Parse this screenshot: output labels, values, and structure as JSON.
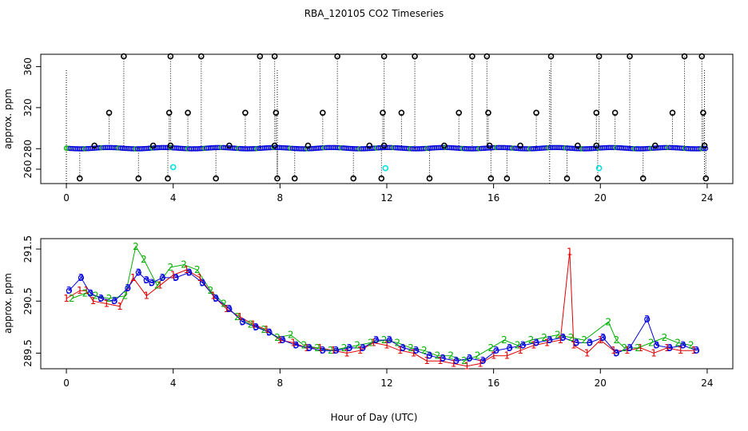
{
  "title": "RBA_120105  CO2 Timeseries",
  "xlabel": "Hour of Day (UTC)",
  "colors": {
    "series1": "#e00000",
    "series2": "#00b000",
    "series3": "#0000dd",
    "open_circle": "#000000",
    "cyan_marker": "#00e0e0"
  },
  "chart_data": [
    {
      "type": "scatter",
      "ylabel": "approx. ppm",
      "xlim": [
        0,
        24
      ],
      "ylim": [
        246,
        372
      ],
      "x_ticks": [
        "0",
        "4",
        "8",
        "12",
        "16",
        "20",
        "24"
      ],
      "y_ticks": [
        "260",
        "280",
        "320",
        "360"
      ],
      "baseline_value": 280.5,
      "markers": {
        "color": "series3",
        "glyph": "o"
      },
      "open_circles_high": [
        [
          2.15,
          370
        ],
        [
          3.9,
          370
        ],
        [
          5.05,
          370
        ],
        [
          7.25,
          370
        ],
        [
          7.8,
          370
        ],
        [
          10.15,
          370
        ],
        [
          11.9,
          370
        ],
        [
          13.05,
          370
        ],
        [
          15.2,
          370
        ],
        [
          15.75,
          370
        ],
        [
          18.15,
          370
        ],
        [
          19.95,
          370
        ],
        [
          21.1,
          370
        ],
        [
          23.15,
          370
        ],
        [
          23.8,
          370
        ]
      ],
      "open_circles_mid": [
        [
          1.6,
          315
        ],
        [
          3.85,
          315
        ],
        [
          4.55,
          315
        ],
        [
          6.7,
          315
        ],
        [
          7.85,
          315
        ],
        [
          9.6,
          315
        ],
        [
          11.85,
          315
        ],
        [
          12.55,
          315
        ],
        [
          14.7,
          315
        ],
        [
          15.8,
          315
        ],
        [
          17.6,
          315
        ],
        [
          19.85,
          315
        ],
        [
          20.55,
          315
        ],
        [
          22.7,
          315
        ],
        [
          23.85,
          315
        ]
      ],
      "open_circles_near": [
        [
          1.05,
          283
        ],
        [
          3.25,
          283
        ],
        [
          3.9,
          283
        ],
        [
          6.1,
          283
        ],
        [
          7.8,
          283
        ],
        [
          9.05,
          283
        ],
        [
          11.35,
          283
        ],
        [
          11.9,
          283
        ],
        [
          14.15,
          283
        ],
        [
          15.85,
          283
        ],
        [
          17.0,
          283
        ],
        [
          19.15,
          283
        ],
        [
          19.85,
          283
        ],
        [
          22.05,
          283
        ],
        [
          23.9,
          283
        ]
      ],
      "open_circles_low": [
        [
          0.5,
          251
        ],
        [
          2.7,
          251
        ],
        [
          3.8,
          251
        ],
        [
          5.6,
          251
        ],
        [
          7.9,
          251
        ],
        [
          8.55,
          251
        ],
        [
          10.75,
          251
        ],
        [
          11.8,
          251
        ],
        [
          13.6,
          251
        ],
        [
          15.9,
          251
        ],
        [
          16.5,
          251
        ],
        [
          18.75,
          251
        ],
        [
          19.9,
          251
        ],
        [
          21.6,
          251
        ],
        [
          23.95,
          251
        ]
      ],
      "cyan_points": [
        [
          4.0,
          262
        ],
        [
          11.95,
          261
        ],
        [
          19.95,
          261
        ]
      ]
    },
    {
      "type": "scatter",
      "ylabel": "approx. ppm",
      "xlim": [
        0,
        24
      ],
      "ylim": [
        289.2,
        291.7
      ],
      "x_ticks": [
        "0",
        "4",
        "8",
        "12",
        "16",
        "20",
        "24"
      ],
      "y_ticks": [
        "289.5",
        "290.5",
        "291.5"
      ],
      "markers": {
        "series1": "1",
        "series2": "2",
        "series3": "3",
        "circle": "o"
      },
      "series": [
        {
          "label": "1",
          "color": "series1",
          "points": [
            [
              0,
              290.55
            ],
            [
              0.5,
              290.7
            ],
            [
              0.75,
              290.7
            ],
            [
              1.0,
              290.5
            ],
            [
              1.5,
              290.45
            ],
            [
              2.0,
              290.4
            ],
            [
              2.5,
              290.95
            ],
            [
              3.0,
              290.6
            ],
            [
              3.5,
              290.8
            ],
            [
              4.0,
              291.0
            ],
            [
              4.5,
              291.1
            ],
            [
              5.0,
              290.95
            ],
            [
              5.5,
              290.6
            ],
            [
              6.0,
              290.35
            ],
            [
              6.5,
              290.2
            ],
            [
              7.0,
              290.05
            ],
            [
              7.5,
              289.95
            ],
            [
              8.0,
              289.75
            ],
            [
              8.5,
              289.7
            ],
            [
              9.0,
              289.6
            ],
            [
              9.5,
              289.6
            ],
            [
              10.0,
              289.55
            ],
            [
              10.5,
              289.5
            ],
            [
              11.0,
              289.55
            ],
            [
              11.5,
              289.7
            ],
            [
              12.0,
              289.65
            ],
            [
              12.5,
              289.55
            ],
            [
              13.0,
              289.5
            ],
            [
              13.5,
              289.35
            ],
            [
              14.0,
              289.35
            ],
            [
              14.5,
              289.3
            ],
            [
              15.0,
              289.25
            ],
            [
              15.5,
              289.3
            ],
            [
              16.0,
              289.45
            ],
            [
              16.5,
              289.45
            ],
            [
              17.0,
              289.55
            ],
            [
              17.5,
              289.65
            ],
            [
              18.0,
              289.7
            ],
            [
              18.5,
              289.75
            ],
            [
              18.85,
              291.45
            ],
            [
              19.0,
              289.65
            ],
            [
              19.5,
              289.5
            ],
            [
              20.0,
              289.75
            ],
            [
              20.5,
              289.55
            ],
            [
              21.0,
              289.55
            ],
            [
              21.5,
              289.6
            ],
            [
              22.0,
              289.5
            ],
            [
              22.5,
              289.6
            ],
            [
              23.0,
              289.55
            ],
            [
              23.5,
              289.55
            ]
          ]
        },
        {
          "label": "2",
          "color": "series2",
          "points": [
            [
              0.2,
              290.55
            ],
            [
              0.7,
              290.65
            ],
            [
              1.1,
              290.6
            ],
            [
              1.6,
              290.55
            ],
            [
              2.2,
              290.6
            ],
            [
              2.6,
              291.55
            ],
            [
              2.9,
              291.3
            ],
            [
              3.4,
              290.8
            ],
            [
              3.9,
              291.15
            ],
            [
              4.4,
              291.2
            ],
            [
              4.9,
              291.1
            ],
            [
              5.4,
              290.7
            ],
            [
              5.9,
              290.45
            ],
            [
              6.4,
              290.2
            ],
            [
              6.9,
              290.05
            ],
            [
              7.4,
              289.95
            ],
            [
              7.9,
              289.8
            ],
            [
              8.4,
              289.85
            ],
            [
              8.9,
              289.65
            ],
            [
              9.4,
              289.6
            ],
            [
              9.9,
              289.55
            ],
            [
              10.4,
              289.6
            ],
            [
              10.9,
              289.65
            ],
            [
              11.4,
              289.7
            ],
            [
              11.9,
              289.75
            ],
            [
              12.4,
              289.7
            ],
            [
              12.9,
              289.6
            ],
            [
              13.4,
              289.55
            ],
            [
              13.9,
              289.45
            ],
            [
              14.4,
              289.45
            ],
            [
              14.9,
              289.35
            ],
            [
              15.4,
              289.45
            ],
            [
              15.9,
              289.6
            ],
            [
              16.4,
              289.75
            ],
            [
              16.9,
              289.65
            ],
            [
              17.4,
              289.75
            ],
            [
              17.9,
              289.8
            ],
            [
              18.4,
              289.85
            ],
            [
              18.9,
              289.8
            ],
            [
              19.4,
              289.75
            ],
            [
              20.3,
              290.1
            ],
            [
              20.6,
              289.75
            ],
            [
              20.9,
              289.6
            ],
            [
              21.4,
              289.6
            ],
            [
              21.9,
              289.7
            ],
            [
              22.4,
              289.8
            ],
            [
              22.9,
              289.7
            ],
            [
              23.4,
              289.65
            ]
          ]
        },
        {
          "label": "3",
          "color": "series3",
          "points": [
            [
              0.1,
              290.7
            ],
            [
              0.55,
              290.95
            ],
            [
              0.9,
              290.65
            ],
            [
              1.3,
              290.55
            ],
            [
              1.8,
              290.5
            ],
            [
              2.3,
              290.75
            ],
            [
              2.7,
              291.05
            ],
            [
              3.0,
              290.9
            ],
            [
              3.2,
              290.85
            ],
            [
              3.6,
              290.95
            ],
            [
              4.1,
              290.95
            ],
            [
              4.6,
              291.05
            ],
            [
              5.1,
              290.85
            ],
            [
              5.6,
              290.55
            ],
            [
              6.1,
              290.35
            ],
            [
              6.6,
              290.1
            ],
            [
              7.1,
              290.0
            ],
            [
              7.6,
              289.9
            ],
            [
              8.1,
              289.75
            ],
            [
              8.6,
              289.65
            ],
            [
              9.1,
              289.6
            ],
            [
              9.6,
              289.55
            ],
            [
              10.1,
              289.55
            ],
            [
              10.6,
              289.6
            ],
            [
              11.1,
              289.6
            ],
            [
              11.6,
              289.75
            ],
            [
              12.1,
              289.75
            ],
            [
              12.6,
              289.6
            ],
            [
              13.1,
              289.55
            ],
            [
              13.6,
              289.45
            ],
            [
              14.1,
              289.4
            ],
            [
              14.6,
              289.35
            ],
            [
              15.1,
              289.4
            ],
            [
              15.6,
              289.35
            ],
            [
              16.1,
              289.55
            ],
            [
              16.6,
              289.6
            ],
            [
              17.1,
              289.65
            ],
            [
              17.6,
              289.7
            ],
            [
              18.1,
              289.75
            ],
            [
              18.6,
              289.8
            ],
            [
              19.1,
              289.7
            ],
            [
              19.6,
              289.7
            ],
            [
              20.1,
              289.8
            ],
            [
              20.6,
              289.5
            ],
            [
              21.1,
              289.6
            ],
            [
              21.75,
              290.15
            ],
            [
              22.1,
              289.65
            ],
            [
              22.6,
              289.6
            ],
            [
              23.1,
              289.65
            ],
            [
              23.6,
              289.55
            ]
          ]
        }
      ]
    }
  ]
}
